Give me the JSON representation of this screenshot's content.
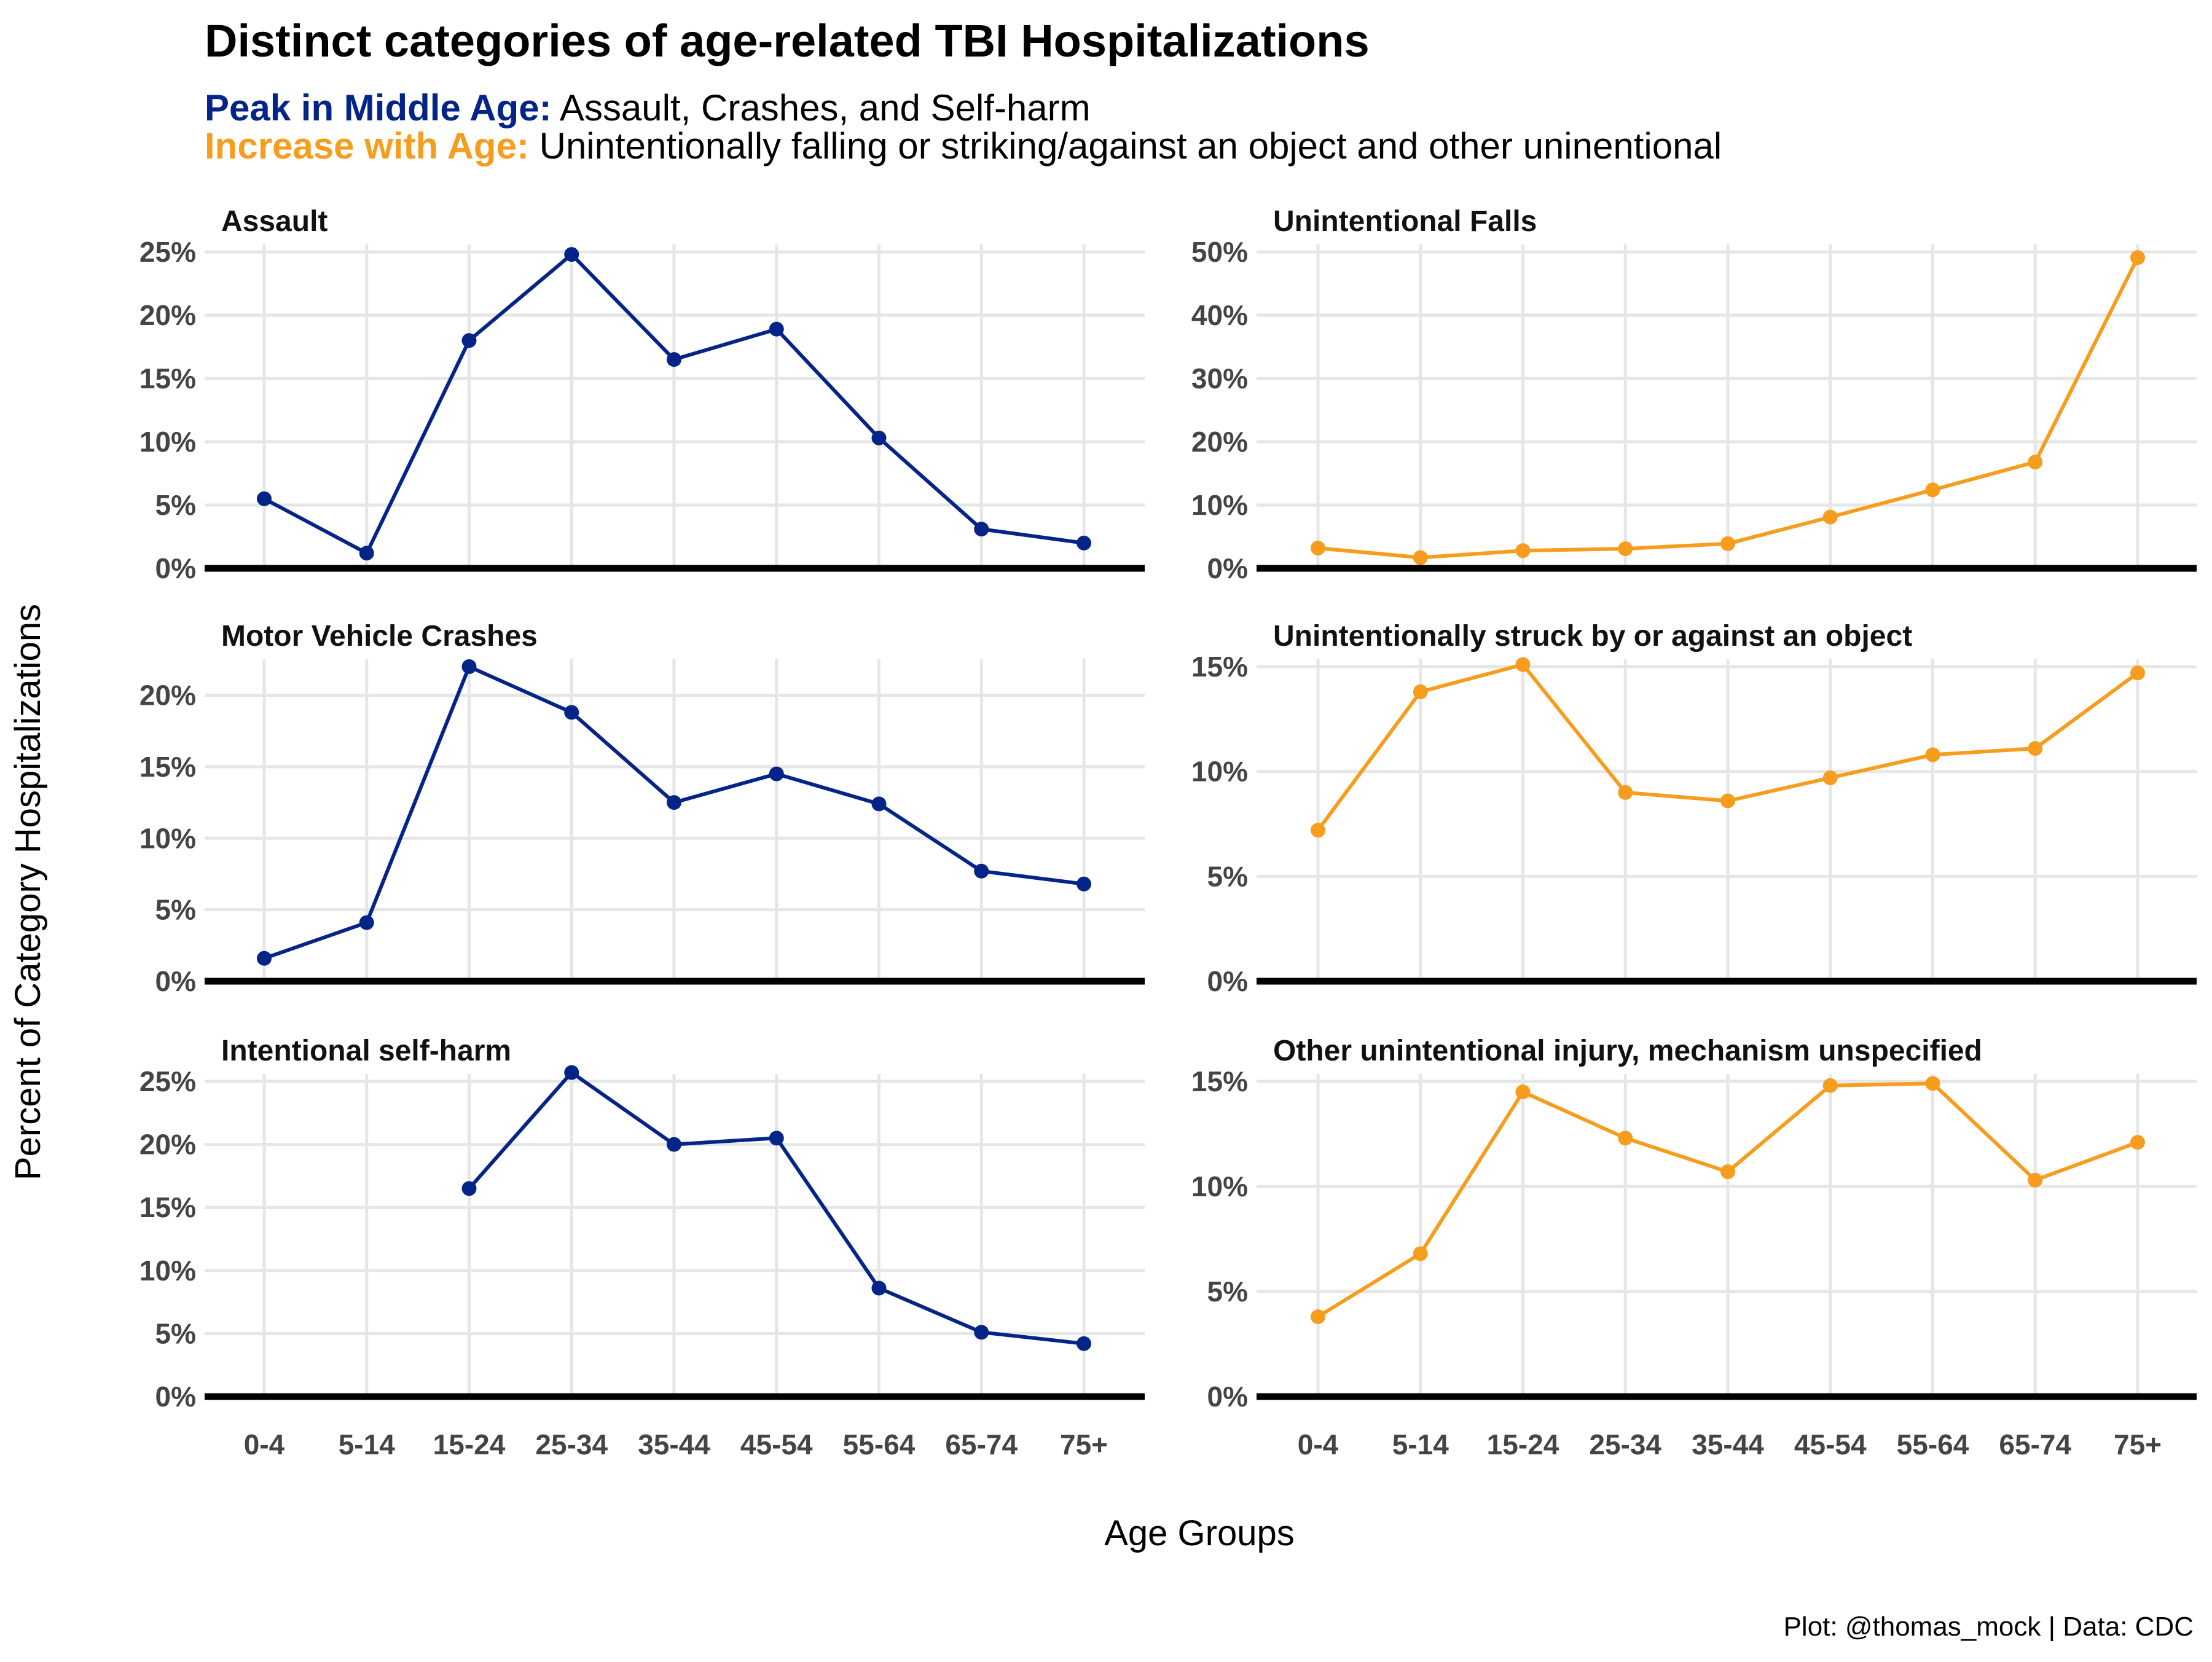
{
  "colors": {
    "middle_age": "#042587",
    "increase_age": "#F79D1E",
    "grid": "#e6e6e6",
    "tick_text": "#444444"
  },
  "header": {
    "title": "Distinct categories of age-related TBI Hospitalizations",
    "subtitle_line1_label": "Peak in Middle Age:",
    "subtitle_line1_text": " Assault, Crashes, and Self-harm",
    "subtitle_line2_label": "Increase with Age:",
    "subtitle_line2_text": " Unintentionally falling or striking/against an object and other uninentional"
  },
  "axes": {
    "xlabel": "Age Groups",
    "ylabel": "Percent of Category Hospitalizations"
  },
  "caption": "Plot: @thomas_mock | Data: CDC",
  "chart_data": {
    "type": "line",
    "layout": "facet-grid 3 rows x 2 columns",
    "categories": [
      "0-4",
      "5-14",
      "15-24",
      "25-34",
      "35-44",
      "45-54",
      "55-64",
      "65-74",
      "75+"
    ],
    "panels": [
      {
        "title": "Assault",
        "group": "Peak in Middle Age",
        "color": "#042587",
        "ylim": [
          0,
          25
        ],
        "yticks": [
          0,
          5,
          10,
          15,
          20,
          25
        ],
        "ytick_labels": [
          "0%",
          "5%",
          "10%",
          "15%",
          "20%",
          "25%"
        ],
        "values": [
          5.5,
          1.2,
          18.0,
          24.8,
          16.5,
          18.9,
          10.3,
          3.1,
          2.0
        ]
      },
      {
        "title": "Unintentional Falls",
        "group": "Increase with Age",
        "color": "#F79D1E",
        "ylim": [
          0,
          50
        ],
        "yticks": [
          0,
          10,
          20,
          30,
          40,
          50
        ],
        "ytick_labels": [
          "0%",
          "10%",
          "20%",
          "30%",
          "40%",
          "50%"
        ],
        "values": [
          3.2,
          1.7,
          2.8,
          3.1,
          3.9,
          8.1,
          12.4,
          16.8,
          49.1
        ]
      },
      {
        "title": "Motor Vehicle Crashes",
        "group": "Peak in Middle Age",
        "color": "#042587",
        "ylim": [
          0,
          22
        ],
        "yticks": [
          0,
          5,
          10,
          15,
          20
        ],
        "ytick_labels": [
          "0%",
          "5%",
          "10%",
          "15%",
          "20%"
        ],
        "values": [
          1.6,
          4.1,
          22.0,
          18.8,
          12.5,
          14.5,
          12.4,
          7.7,
          6.8
        ]
      },
      {
        "title": "Unintentionally struck by or against an object",
        "group": "Increase with Age",
        "color": "#F79D1E",
        "ylim": [
          0,
          15
        ],
        "yticks": [
          0,
          5,
          10,
          15
        ],
        "ytick_labels": [
          "0%",
          "5%",
          "10%",
          "15%"
        ],
        "values": [
          7.2,
          13.8,
          15.1,
          9.0,
          8.6,
          9.7,
          10.8,
          11.1,
          14.7
        ]
      },
      {
        "title": "Intentional self-harm",
        "group": "Peak in Middle Age",
        "color": "#042587",
        "ylim": [
          0,
          25
        ],
        "yticks": [
          0,
          5,
          10,
          15,
          20,
          25
        ],
        "ytick_labels": [
          "0%",
          "5%",
          "10%",
          "15%",
          "20%",
          "25%"
        ],
        "values": [
          null,
          null,
          16.5,
          25.7,
          20.0,
          20.5,
          8.6,
          5.1,
          4.2
        ]
      },
      {
        "title": "Other unintentional injury, mechanism unspecified",
        "group": "Increase with Age",
        "color": "#F79D1E",
        "ylim": [
          0,
          15
        ],
        "yticks": [
          0,
          5,
          10,
          15
        ],
        "ytick_labels": [
          "0%",
          "5%",
          "10%",
          "15%"
        ],
        "values": [
          3.8,
          6.8,
          14.5,
          12.3,
          10.7,
          14.8,
          14.9,
          10.3,
          12.1
        ]
      }
    ]
  }
}
